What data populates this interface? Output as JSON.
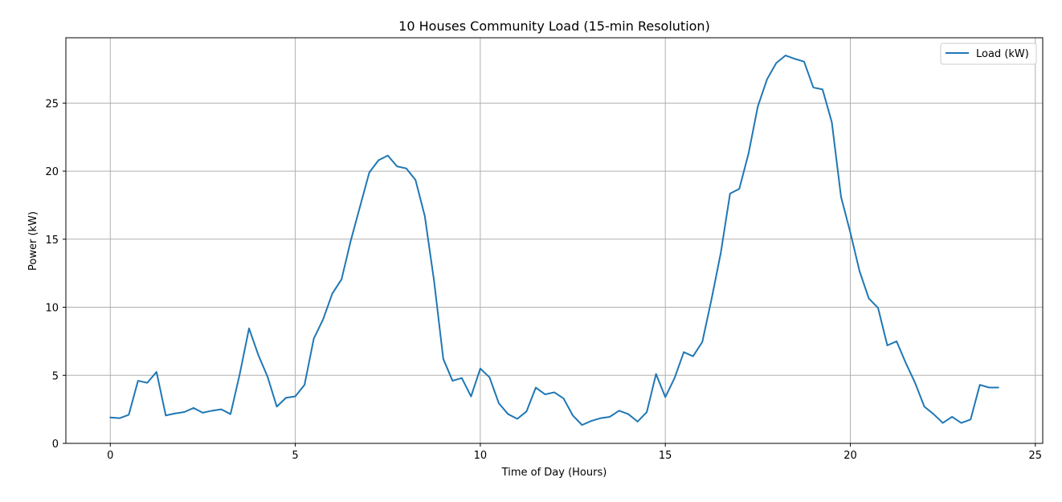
{
  "chart_data": {
    "type": "line",
    "title": "10 Houses Community Load (15-min Resolution)",
    "xlabel": "Time of Day (Hours)",
    "ylabel": "Power (kW)",
    "xlim": [
      -1.2,
      25.2
    ],
    "ylim": [
      0,
      29.8
    ],
    "xticks": [
      0,
      5,
      10,
      15,
      20,
      25
    ],
    "xtick_labels": [
      "0",
      "5",
      "10",
      "15",
      "20",
      "25"
    ],
    "yticks": [
      0,
      5,
      10,
      15,
      20,
      25
    ],
    "ytick_labels": [
      "0",
      "5",
      "10",
      "15",
      "20",
      "25"
    ],
    "grid": true,
    "legend_position": "top-right",
    "colors": {
      "line": "#1f77b4",
      "grid": "#b0b0b0",
      "axes": "#000000"
    },
    "series": [
      {
        "name": "Load (kW)",
        "x": [
          0,
          0.25,
          0.5,
          0.75,
          1.0,
          1.25,
          1.5,
          1.75,
          2.0,
          2.25,
          2.5,
          2.75,
          3.0,
          3.25,
          3.5,
          3.75,
          4.0,
          4.25,
          4.5,
          4.75,
          5.0,
          5.25,
          5.5,
          5.75,
          6.0,
          6.25,
          6.5,
          6.75,
          7.0,
          7.25,
          7.5,
          7.75,
          8.0,
          8.25,
          8.5,
          8.75,
          9.0,
          9.25,
          9.5,
          9.75,
          10.0,
          10.25,
          10.5,
          10.75,
          11.0,
          11.25,
          11.5,
          11.75,
          12.0,
          12.25,
          12.5,
          12.75,
          13.0,
          13.25,
          13.5,
          13.75,
          14.0,
          14.25,
          14.5,
          14.75,
          15.0,
          15.25,
          15.5,
          15.75,
          16.0,
          16.25,
          16.5,
          16.75,
          17.0,
          17.25,
          17.5,
          17.75,
          18.0,
          18.25,
          18.5,
          18.75,
          19.0,
          19.25,
          19.5,
          19.75,
          20.0,
          20.25,
          20.5,
          20.75,
          21.0,
          21.25,
          21.5,
          21.75,
          22.0,
          22.25,
          22.5,
          22.75,
          23.0,
          23.25,
          23.5,
          23.75,
          24.0
        ],
        "y": [
          1.9,
          1.85,
          2.1,
          4.6,
          4.45,
          5.25,
          2.05,
          2.2,
          2.3,
          2.6,
          2.25,
          2.4,
          2.5,
          2.15,
          5.1,
          8.45,
          6.5,
          4.9,
          2.7,
          3.35,
          3.45,
          4.3,
          7.7,
          9.1,
          11.0,
          12.05,
          14.9,
          17.4,
          19.9,
          20.8,
          21.15,
          20.35,
          20.2,
          19.35,
          16.7,
          11.95,
          6.2,
          4.6,
          4.8,
          3.45,
          5.5,
          4.85,
          2.95,
          2.15,
          1.8,
          2.35,
          4.1,
          3.6,
          3.75,
          3.3,
          2.05,
          1.35,
          1.65,
          1.85,
          1.95,
          2.4,
          2.15,
          1.6,
          2.3,
          5.1,
          3.4,
          4.8,
          6.7,
          6.4,
          7.45,
          10.6,
          14.0,
          18.35,
          18.7,
          21.3,
          24.75,
          26.75,
          27.95,
          28.5,
          28.25,
          28.05,
          26.15,
          26.0,
          23.6,
          18.1,
          15.5,
          12.65,
          10.65,
          9.95,
          7.2,
          7.5,
          5.9,
          4.45,
          2.7,
          2.15,
          1.5,
          1.95,
          1.5,
          1.75,
          4.3,
          4.1,
          4.1
        ]
      }
    ]
  }
}
